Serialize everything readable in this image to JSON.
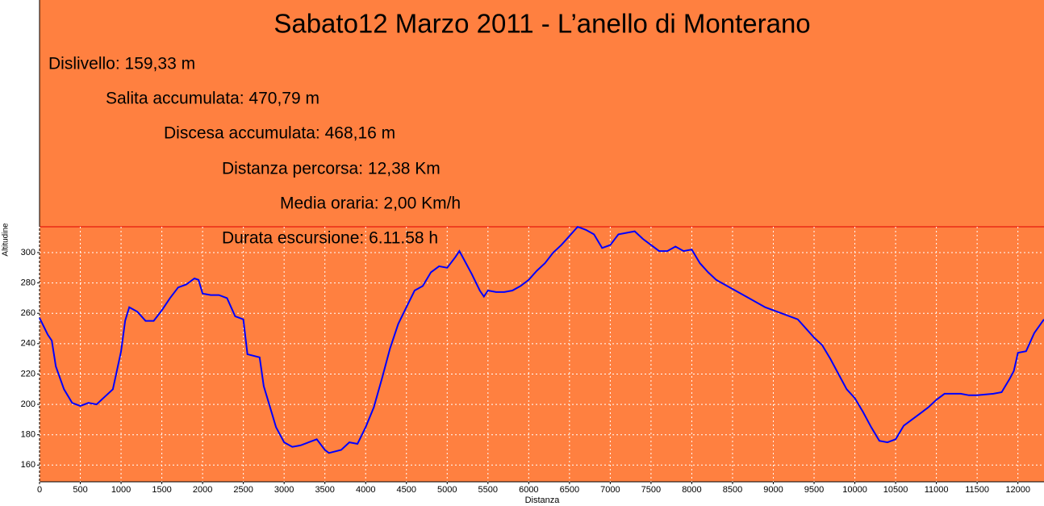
{
  "chart_data": {
    "type": "line",
    "title": "Sabato12 Marzo 2011 - L’anello di Monterano",
    "annotations": [
      "Dislivello: 159,33 m",
      "Salita accumulata: 470,79 m",
      "Discesa accumulata: 468,16 m",
      "Distanza percorsa: 12,38 Km",
      "Media oraria: 2,00 Km/h",
      "Durata escursione: 6.11.58 h"
    ],
    "xlabel": "Distanza",
    "ylabel": "Altitudine",
    "xlim": [
      0,
      12320
    ],
    "ylim": [
      149,
      317
    ],
    "xticks": [
      0,
      500,
      1000,
      1500,
      2000,
      2500,
      3000,
      3500,
      4000,
      4500,
      5000,
      5500,
      6000,
      6500,
      7000,
      7500,
      8000,
      8500,
      9000,
      9500,
      10000,
      10500,
      11000,
      11500,
      12000
    ],
    "yticks": [
      160,
      180,
      200,
      220,
      240,
      260,
      280,
      300
    ],
    "grid": true,
    "series": [
      {
        "color": "#0000ff",
        "x": [
          0,
          100,
          150,
          200,
          300,
          400,
          500,
          600,
          700,
          800,
          900,
          1000,
          1050,
          1100,
          1200,
          1300,
          1400,
          1500,
          1600,
          1700,
          1800,
          1900,
          1950,
          2000,
          2100,
          2200,
          2300,
          2400,
          2500,
          2550,
          2700,
          2750,
          2800,
          2900,
          3000,
          3100,
          3200,
          3300,
          3400,
          3500,
          3550,
          3700,
          3800,
          3900,
          4000,
          4100,
          4200,
          4300,
          4400,
          4500,
          4600,
          4700,
          4800,
          4900,
          5000,
          5100,
          5150,
          5200,
          5300,
          5400,
          5450,
          5500,
          5600,
          5700,
          5800,
          5900,
          6000,
          6100,
          6200,
          6300,
          6400,
          6500,
          6600,
          6700,
          6800,
          6900,
          7000,
          7100,
          7200,
          7300,
          7400,
          7500,
          7600,
          7700,
          7800,
          7900,
          8000,
          8100,
          8200,
          8300,
          8400,
          8500,
          8700,
          8900,
          9100,
          9300,
          9500,
          9600,
          9700,
          9800,
          9900,
          10000,
          10100,
          10200,
          10300,
          10400,
          10500,
          10600,
          10800,
          10900,
          11000,
          11100,
          11300,
          11400,
          11500,
          11700,
          11800,
          11900,
          11950,
          12000,
          12100,
          12200,
          12320
        ],
        "values": [
          257,
          246,
          242,
          225,
          210,
          201,
          199,
          201,
          200,
          205,
          210,
          235,
          255,
          264,
          261,
          255,
          255,
          262,
          270,
          277,
          279,
          283,
          282,
          273,
          272,
          272,
          270,
          258,
          256,
          233,
          231,
          212,
          203,
          185,
          175,
          172,
          173,
          175,
          177,
          170,
          168,
          170,
          175,
          174,
          185,
          198,
          217,
          237,
          253,
          264,
          275,
          278,
          287,
          291,
          290,
          297,
          301,
          296,
          286,
          275,
          271,
          275,
          274,
          274,
          275,
          278,
          282,
          288,
          293,
          300,
          305,
          311,
          317,
          315,
          312,
          303,
          305,
          312,
          313,
          314,
          309,
          305,
          301,
          301,
          304,
          301,
          302,
          293,
          287,
          282,
          279,
          276,
          270,
          264,
          260,
          256,
          244,
          239,
          230,
          220,
          210,
          204,
          195,
          185,
          176,
          175,
          177,
          186,
          194,
          198,
          203,
          207,
          207,
          206,
          206,
          207,
          208,
          217,
          222,
          234,
          235,
          247,
          256
        ]
      }
    ]
  }
}
